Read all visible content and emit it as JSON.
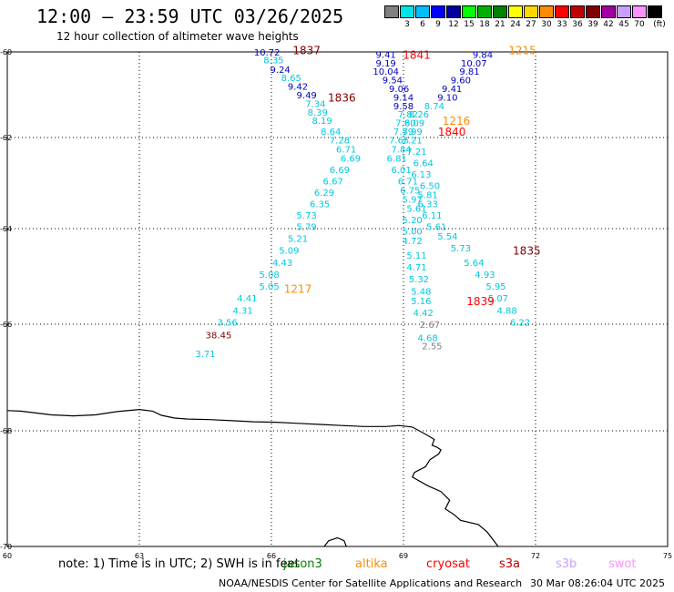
{
  "header": {
    "title": "12:00 – 23:59 UTC 03/26/2025",
    "subtitle": "12 hour collection of altimeter wave heights"
  },
  "scale": {
    "unit_label": "(ft)",
    "swatches": [
      {
        "color": "#808080",
        "label": ""
      },
      {
        "color": "#00e5e5",
        "label": "3"
      },
      {
        "color": "#00bfff",
        "label": "6"
      },
      {
        "color": "#0000ff",
        "label": "9"
      },
      {
        "color": "#0000a0",
        "label": "12"
      },
      {
        "color": "#00ff00",
        "label": "15"
      },
      {
        "color": "#00b000",
        "label": "18"
      },
      {
        "color": "#008000",
        "label": "21"
      },
      {
        "color": "#ffff00",
        "label": "24"
      },
      {
        "color": "#ffd700",
        "label": "27"
      },
      {
        "color": "#ff8c00",
        "label": "30"
      },
      {
        "color": "#ff0000",
        "label": "33"
      },
      {
        "color": "#c00000",
        "label": "36"
      },
      {
        "color": "#800000",
        "label": "39"
      },
      {
        "color": "#a000a0",
        "label": "42"
      },
      {
        "color": "#c8a0ff",
        "label": "45"
      },
      {
        "color": "#ff90ff",
        "label": "70"
      },
      {
        "color": "#000000",
        "label": ""
      }
    ]
  },
  "axes": {
    "lat_labels": [
      "-60",
      "-62",
      "-64",
      "-66",
      "-68",
      "-70"
    ],
    "lon_labels": [
      "60",
      "63",
      "66",
      "69",
      "72",
      "75"
    ]
  },
  "colors": {
    "wave_low": "#00c8e0",
    "wave_mid": "#0000c0",
    "wave_grey": "#808080",
    "orbit_jason": "#800000",
    "orbit_cryosat": "#ff0000",
    "orbit_altika": "#ff8c00",
    "orbit_s3a": "#c00000"
  },
  "observations": [
    {
      "lat": -60.0,
      "lon": 65.9,
      "value": "10.72",
      "color": "#0000c0"
    },
    {
      "lat": -60.18,
      "lon": 66.05,
      "value": "8.35",
      "color": "#00c8e0"
    },
    {
      "lat": -60.4,
      "lon": 66.2,
      "value": "9.24",
      "color": "#0000c0"
    },
    {
      "lat": -60.6,
      "lon": 66.45,
      "value": "8.65",
      "color": "#00c8e0"
    },
    {
      "lat": -60.8,
      "lon": 66.6,
      "value": "9.42",
      "color": "#0000c0"
    },
    {
      "lat": -61.0,
      "lon": 66.8,
      "value": "9.49",
      "color": "#0000c0"
    },
    {
      "lat": -61.2,
      "lon": 67.0,
      "value": "7.34",
      "color": "#00c8e0"
    },
    {
      "lat": -61.4,
      "lon": 67.05,
      "value": "8.39",
      "color": "#00c8e0"
    },
    {
      "lat": -61.6,
      "lon": 67.15,
      "value": "8.19",
      "color": "#00c8e0"
    },
    {
      "lat": -61.85,
      "lon": 67.35,
      "value": "8.64",
      "color": "#00c8e0"
    },
    {
      "lat": -62.05,
      "lon": 67.55,
      "value": "7.28",
      "color": "#00c8e0"
    },
    {
      "lat": -62.25,
      "lon": 67.7,
      "value": "6.71",
      "color": "#00c8e0"
    },
    {
      "lat": -62.45,
      "lon": 67.8,
      "value": "6.69",
      "color": "#00c8e0"
    },
    {
      "lat": -62.7,
      "lon": 67.55,
      "value": "6.69",
      "color": "#00c8e0"
    },
    {
      "lat": -62.95,
      "lon": 67.4,
      "value": "6.67",
      "color": "#00c8e0"
    },
    {
      "lat": -63.2,
      "lon": 67.2,
      "value": "6.29",
      "color": "#00c8e0"
    },
    {
      "lat": -63.45,
      "lon": 67.1,
      "value": "6.35",
      "color": "#00c8e0"
    },
    {
      "lat": -63.7,
      "lon": 66.8,
      "value": "5.73",
      "color": "#00c8e0"
    },
    {
      "lat": -63.95,
      "lon": 66.8,
      "value": "5.79",
      "color": "#00c8e0"
    },
    {
      "lat": -64.2,
      "lon": 66.6,
      "value": "5.21",
      "color": "#00c8e0"
    },
    {
      "lat": -64.45,
      "lon": 66.4,
      "value": "5.09",
      "color": "#00c8e0"
    },
    {
      "lat": -64.7,
      "lon": 66.25,
      "value": "4.43",
      "color": "#00c8e0"
    },
    {
      "lat": -64.95,
      "lon": 65.95,
      "value": "5.08",
      "color": "#00c8e0"
    },
    {
      "lat": -65.2,
      "lon": 65.95,
      "value": "5.05",
      "color": "#00c8e0"
    },
    {
      "lat": -65.45,
      "lon": 65.45,
      "value": "4.41",
      "color": "#00c8e0"
    },
    {
      "lat": -65.7,
      "lon": 65.35,
      "value": "4.31",
      "color": "#00c8e0"
    },
    {
      "lat": -65.95,
      "lon": 65.0,
      "value": "3.56",
      "color": "#00c8e0"
    },
    {
      "lat": -66.2,
      "lon": 64.8,
      "value": "38.45",
      "color": "#800000"
    },
    {
      "lat": -66.55,
      "lon": 64.5,
      "value": "3.71",
      "color": "#00c8e0"
    },
    {
      "lat": -60.05,
      "lon": 68.6,
      "value": "9.41",
      "color": "#0000c0"
    },
    {
      "lat": -60.25,
      "lon": 68.6,
      "value": "9.19",
      "color": "#0000c0"
    },
    {
      "lat": -60.45,
      "lon": 68.6,
      "value": "10.04",
      "color": "#0000c0"
    },
    {
      "lat": -60.65,
      "lon": 68.75,
      "value": "9.54",
      "color": "#0000c0"
    },
    {
      "lat": -60.85,
      "lon": 68.9,
      "value": "9.06",
      "color": "#0000c0"
    },
    {
      "lat": -61.05,
      "lon": 69.0,
      "value": "9.14",
      "color": "#0000c0"
    },
    {
      "lat": -61.25,
      "lon": 69.0,
      "value": "9.58",
      "color": "#0000c0"
    },
    {
      "lat": -61.45,
      "lon": 69.1,
      "value": "7.82",
      "color": "#00c8e0"
    },
    {
      "lat": -61.65,
      "lon": 69.05,
      "value": "7.60",
      "color": "#00c8e0"
    },
    {
      "lat": -61.85,
      "lon": 69.0,
      "value": "7.59",
      "color": "#00c8e0"
    },
    {
      "lat": -62.05,
      "lon": 68.9,
      "value": "7.65",
      "color": "#00c8e0"
    },
    {
      "lat": -62.25,
      "lon": 68.95,
      "value": "7.84",
      "color": "#00c8e0"
    },
    {
      "lat": -62.45,
      "lon": 68.85,
      "value": "6.81",
      "color": "#00c8e0"
    },
    {
      "lat": -62.7,
      "lon": 68.95,
      "value": "6.01",
      "color": "#00c8e0"
    },
    {
      "lat": -62.95,
      "lon": 69.1,
      "value": "6.71",
      "color": "#00c8e0"
    },
    {
      "lat": -63.15,
      "lon": 69.15,
      "value": "6.75",
      "color": "#00c8e0"
    },
    {
      "lat": -63.35,
      "lon": 69.2,
      "value": "5.97",
      "color": "#00c8e0"
    },
    {
      "lat": -63.55,
      "lon": 69.3,
      "value": "5.61",
      "color": "#00c8e0"
    },
    {
      "lat": -63.8,
      "lon": 69.2,
      "value": "5.20",
      "color": "#00c8e0"
    },
    {
      "lat": -64.05,
      "lon": 69.2,
      "value": "5.00",
      "color": "#00c8e0"
    },
    {
      "lat": -64.25,
      "lon": 69.2,
      "value": "4.72",
      "color": "#00c8e0"
    },
    {
      "lat": -64.55,
      "lon": 69.3,
      "value": "5.11",
      "color": "#00c8e0"
    },
    {
      "lat": -64.8,
      "lon": 69.3,
      "value": "4.71",
      "color": "#00c8e0"
    },
    {
      "lat": -65.05,
      "lon": 69.35,
      "value": "5.32",
      "color": "#00c8e0"
    },
    {
      "lat": -65.3,
      "lon": 69.4,
      "value": "5.48",
      "color": "#00c8e0"
    },
    {
      "lat": -65.5,
      "lon": 69.4,
      "value": "5.16",
      "color": "#00c8e0"
    },
    {
      "lat": -65.75,
      "lon": 69.45,
      "value": "4.42",
      "color": "#00c8e0"
    },
    {
      "lat": -66.0,
      "lon": 69.6,
      "value": "2.67",
      "color": "#808080"
    },
    {
      "lat": -66.25,
      "lon": 69.55,
      "value": "4.68",
      "color": "#00c8e0"
    },
    {
      "lat": -66.4,
      "lon": 69.65,
      "value": "2.55",
      "color": "#808080"
    },
    {
      "lat": -60.05,
      "lon": 70.8,
      "value": "9.84",
      "color": "#0000c0"
    },
    {
      "lat": -60.25,
      "lon": 70.6,
      "value": "10.07",
      "color": "#0000c0"
    },
    {
      "lat": -60.45,
      "lon": 70.5,
      "value": "9.81",
      "color": "#0000c0"
    },
    {
      "lat": -60.65,
      "lon": 70.3,
      "value": "9.60",
      "color": "#0000c0"
    },
    {
      "lat": -60.85,
      "lon": 70.1,
      "value": "9.41",
      "color": "#0000c0"
    },
    {
      "lat": -61.05,
      "lon": 70.0,
      "value": "9.10",
      "color": "#0000c0"
    },
    {
      "lat": -61.25,
      "lon": 69.7,
      "value": "8.74",
      "color": "#00c8e0"
    },
    {
      "lat": -61.45,
      "lon": 69.35,
      "value": "8.26",
      "color": "#00c8e0"
    },
    {
      "lat": -61.65,
      "lon": 69.25,
      "value": "8.09",
      "color": "#00c8e0"
    },
    {
      "lat": -61.85,
      "lon": 69.2,
      "value": "7.99",
      "color": "#00c8e0"
    },
    {
      "lat": -62.05,
      "lon": 69.2,
      "value": "7.21",
      "color": "#00c8e0"
    },
    {
      "lat": -62.3,
      "lon": 69.3,
      "value": "7.21",
      "color": "#00c8e0"
    },
    {
      "lat": -62.55,
      "lon": 69.45,
      "value": "6.64",
      "color": "#00c8e0"
    },
    {
      "lat": -62.8,
      "lon": 69.4,
      "value": "6.13",
      "color": "#00c8e0"
    },
    {
      "lat": -63.05,
      "lon": 69.6,
      "value": "6.50",
      "color": "#00c8e0"
    },
    {
      "lat": -63.25,
      "lon": 69.55,
      "value": "5.81",
      "color": "#00c8e0"
    },
    {
      "lat": -63.45,
      "lon": 69.55,
      "value": "6.33",
      "color": "#00c8e0"
    },
    {
      "lat": -63.7,
      "lon": 69.65,
      "value": "6.11",
      "color": "#00c8e0"
    },
    {
      "lat": -63.95,
      "lon": 69.75,
      "value": "5.61",
      "color": "#00c8e0"
    },
    {
      "lat": -64.15,
      "lon": 70.0,
      "value": "5.54",
      "color": "#00c8e0"
    },
    {
      "lat": -64.4,
      "lon": 70.3,
      "value": "5.73",
      "color": "#00c8e0"
    },
    {
      "lat": -64.7,
      "lon": 70.6,
      "value": "5.64",
      "color": "#00c8e0"
    },
    {
      "lat": -64.95,
      "lon": 70.85,
      "value": "4.93",
      "color": "#00c8e0"
    },
    {
      "lat": -65.2,
      "lon": 71.1,
      "value": "5.95",
      "color": "#00c8e0"
    },
    {
      "lat": -65.45,
      "lon": 71.15,
      "value": "5.07",
      "color": "#00c8e0"
    },
    {
      "lat": -65.7,
      "lon": 71.35,
      "value": "4.88",
      "color": "#00c8e0"
    },
    {
      "lat": -65.95,
      "lon": 71.65,
      "value": "6.22",
      "color": "#00c8e0"
    }
  ],
  "orbit_labels": [
    {
      "lat": -59.95,
      "lon": 66.8,
      "text": "1837",
      "color": "#800000"
    },
    {
      "lat": -60.05,
      "lon": 69.3,
      "text": "1841",
      "color": "#ff0000"
    },
    {
      "lat": -59.95,
      "lon": 71.7,
      "text": "1215",
      "color": "#ff8c00"
    },
    {
      "lat": -61.05,
      "lon": 67.6,
      "text": "1836",
      "color": "#800000"
    },
    {
      "lat": -61.6,
      "lon": 70.2,
      "text": "1216",
      "color": "#ff8c00"
    },
    {
      "lat": -61.85,
      "lon": 70.1,
      "text": "1840",
      "color": "#ff0000"
    },
    {
      "lat": -64.45,
      "lon": 71.8,
      "text": "1835",
      "color": "#800000"
    },
    {
      "lat": -65.25,
      "lon": 66.6,
      "text": "1217",
      "color": "#ff8c00"
    },
    {
      "lat": -65.5,
      "lon": 70.75,
      "text": "1839",
      "color": "#ff0000"
    }
  ],
  "footer": {
    "note": "note: 1) Time is in UTC; 2) SWH is in feet",
    "satellites": [
      {
        "name": "jason3",
        "color": "#008000"
      },
      {
        "name": "altika",
        "color": "#ff8c00"
      },
      {
        "name": "cryosat",
        "color": "#ff0000"
      },
      {
        "name": "s3a",
        "color": "#c00000"
      },
      {
        "name": "s3b",
        "color": "#c8a0ff"
      },
      {
        "name": "swot",
        "color": "#ff90ff"
      }
    ],
    "credit": "NOAA/NESDIS Center for Satellite Applications and Research",
    "timestamp": "30 Mar 08:26:04 UTC 2025"
  }
}
